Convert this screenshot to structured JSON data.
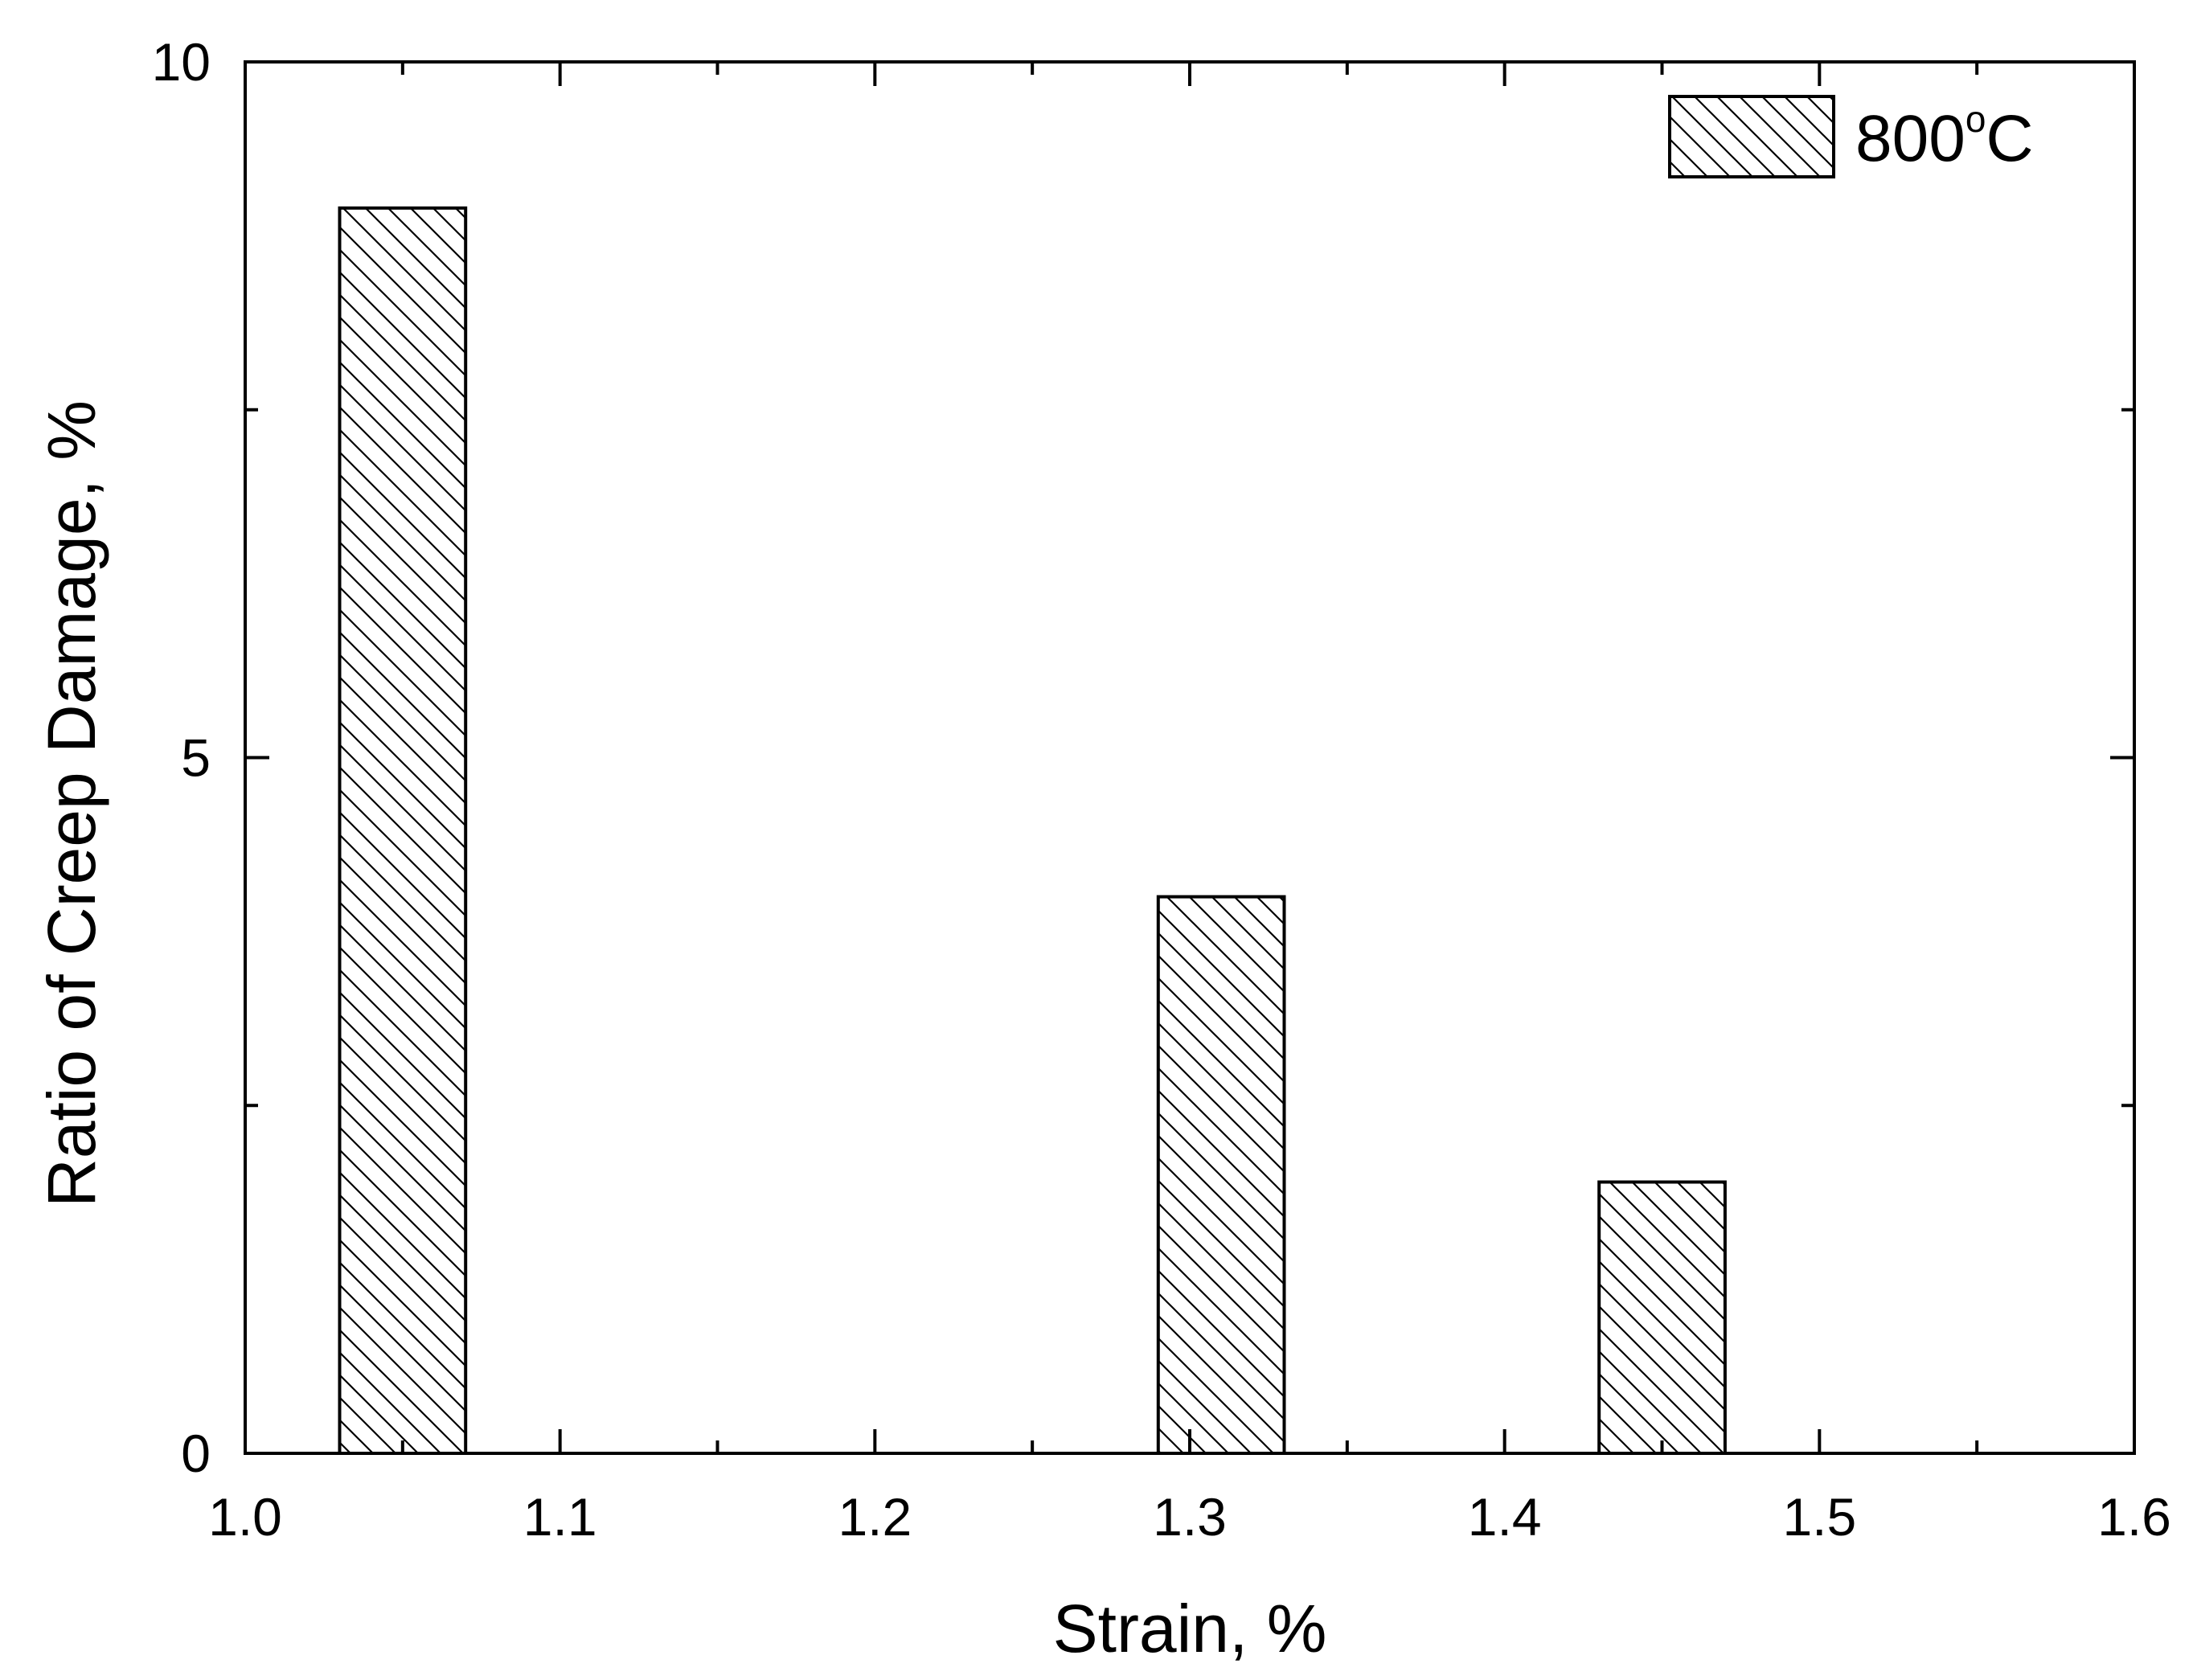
{
  "chart_data": {
    "type": "bar",
    "x": [
      1.05,
      1.31,
      1.45
    ],
    "series": [
      {
        "name": "800°C",
        "values": [
          8.95,
          4.0,
          1.95
        ]
      }
    ],
    "xlabel": "Strain, %",
    "ylabel": "Ratio of Creep Damage, %",
    "xlim": [
      1.0,
      1.6
    ],
    "ylim": [
      0,
      10
    ],
    "xticks": [
      1.0,
      1.1,
      1.2,
      1.3,
      1.4,
      1.5,
      1.6
    ],
    "xtick_labels": [
      "1.0",
      "1.1",
      "1.2",
      "1.3",
      "1.4",
      "1.5",
      "1.6"
    ],
    "yticks": [
      0,
      5,
      10
    ],
    "ytick_labels": [
      "0",
      "5",
      "10"
    ],
    "bar_width": 0.04,
    "fill_pattern": "diagonal-hatch",
    "grid": false,
    "legend_position": "top-right",
    "legend": {
      "label_main": "800",
      "label_degree": "o",
      "label_unit": "C"
    },
    "colors": {
      "bar_stroke": "#000000",
      "bar_fill": "#ffffff",
      "hatch": "#000000",
      "axes": "#000000"
    }
  }
}
